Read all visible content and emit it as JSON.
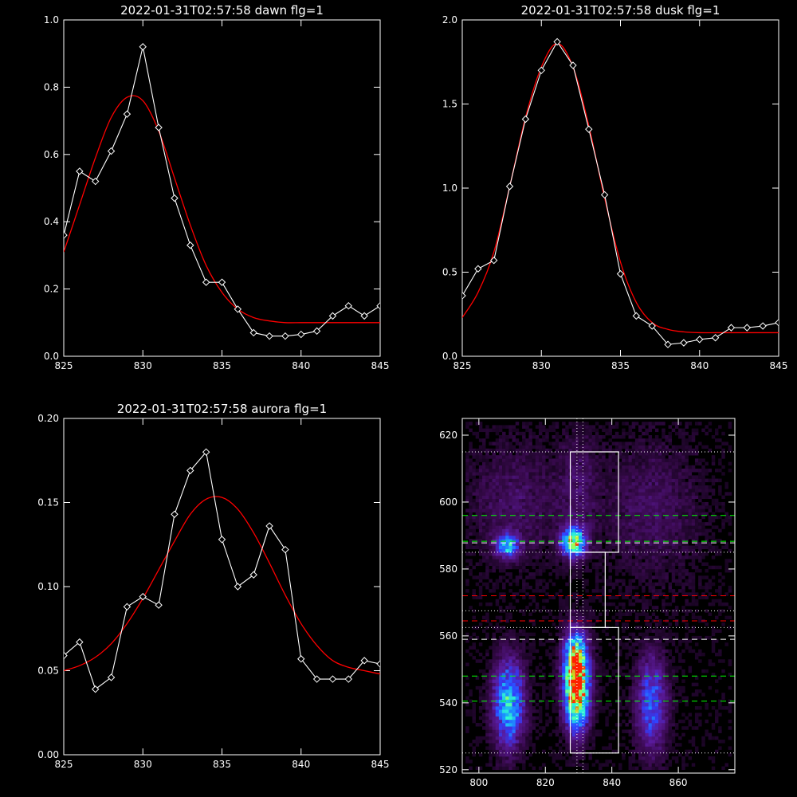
{
  "chart_data": [
    {
      "type": "line",
      "title": "2022-01-31T02:57:58 dawn flg=1",
      "xlim": [
        825,
        845
      ],
      "ylim": [
        0,
        1.0
      ],
      "xticks": [
        "825",
        "830",
        "835",
        "840",
        "845"
      ],
      "yticks": [
        "0.0",
        "0.2",
        "0.4",
        "0.6",
        "0.8",
        "1.0"
      ],
      "series": [
        {
          "role": "data",
          "color": "#ffffff",
          "markers": "diamond",
          "x": [
            825,
            826,
            827,
            828,
            829,
            830,
            831,
            832,
            833,
            834,
            835,
            836,
            837,
            838,
            839,
            840,
            841,
            842,
            843,
            844,
            845
          ],
          "y": [
            0.36,
            0.55,
            0.52,
            0.61,
            0.72,
            0.92,
            0.68,
            0.47,
            0.33,
            0.22,
            0.22,
            0.14,
            0.07,
            0.06,
            0.06,
            0.065,
            0.075,
            0.12,
            0.15,
            0.12,
            0.15
          ]
        },
        {
          "role": "fit",
          "color": "#ff0000",
          "x": [
            825,
            826,
            827,
            828,
            829,
            830,
            831,
            832,
            833,
            834,
            835,
            836,
            837,
            838,
            839,
            840,
            841,
            842,
            843,
            844,
            845
          ],
          "y": [
            0.31,
            0.45,
            0.59,
            0.71,
            0.77,
            0.76,
            0.67,
            0.53,
            0.39,
            0.27,
            0.19,
            0.14,
            0.115,
            0.105,
            0.1,
            0.1,
            0.1,
            0.1,
            0.1,
            0.1,
            0.1
          ]
        }
      ]
    },
    {
      "type": "line",
      "title": "2022-01-31T02:57:58 dusk flg=1",
      "xlim": [
        825,
        845
      ],
      "ylim": [
        0,
        2.0
      ],
      "xticks": [
        "825",
        "830",
        "835",
        "840",
        "845"
      ],
      "yticks": [
        "0.0",
        "0.5",
        "1.0",
        "1.5",
        "2.0"
      ],
      "series": [
        {
          "role": "data",
          "color": "#ffffff",
          "markers": "diamond",
          "x": [
            825,
            826,
            827,
            828,
            829,
            830,
            831,
            832,
            833,
            834,
            835,
            836,
            837,
            838,
            839,
            840,
            841,
            842,
            843,
            844,
            845
          ],
          "y": [
            0.36,
            0.52,
            0.57,
            1.01,
            1.41,
            1.7,
            1.87,
            1.73,
            1.35,
            0.96,
            0.49,
            0.24,
            0.18,
            0.07,
            0.08,
            0.1,
            0.11,
            0.17,
            0.17,
            0.18,
            0.2
          ]
        },
        {
          "role": "fit",
          "color": "#ff0000",
          "x": [
            825,
            826,
            827,
            828,
            829,
            830,
            831,
            832,
            833,
            834,
            835,
            836,
            837,
            838,
            839,
            840,
            841,
            842,
            843,
            844,
            845
          ],
          "y": [
            0.23,
            0.38,
            0.62,
            1.01,
            1.42,
            1.72,
            1.86,
            1.72,
            1.37,
            0.94,
            0.56,
            0.32,
            0.2,
            0.16,
            0.145,
            0.14,
            0.14,
            0.14,
            0.14,
            0.14,
            0.14
          ]
        }
      ]
    },
    {
      "type": "line",
      "title": "2022-01-31T02:57:58 aurora flg=1",
      "xlim": [
        825,
        845
      ],
      "ylim": [
        0,
        0.2
      ],
      "xticks": [
        "825",
        "830",
        "835",
        "840",
        "845"
      ],
      "yticks": [
        "0.00",
        "0.05",
        "0.10",
        "0.15",
        "0.20"
      ],
      "series": [
        {
          "role": "data",
          "color": "#ffffff",
          "markers": "diamond",
          "x": [
            825,
            826,
            827,
            828,
            829,
            830,
            831,
            832,
            833,
            834,
            835,
            836,
            837,
            838,
            839,
            840,
            841,
            842,
            843,
            844,
            845
          ],
          "y": [
            0.059,
            0.067,
            0.039,
            0.046,
            0.088,
            0.094,
            0.089,
            0.143,
            0.169,
            0.18,
            0.128,
            0.1,
            0.107,
            0.136,
            0.122,
            0.057,
            0.045,
            0.045,
            0.045,
            0.056,
            0.054
          ]
        },
        {
          "role": "fit",
          "color": "#ff0000",
          "x": [
            825,
            826,
            827,
            828,
            829,
            830,
            831,
            832,
            833,
            834,
            835,
            836,
            837,
            838,
            839,
            840,
            841,
            842,
            843,
            844,
            845
          ],
          "y": [
            0.05,
            0.053,
            0.058,
            0.066,
            0.078,
            0.093,
            0.11,
            0.127,
            0.143,
            0.152,
            0.153,
            0.146,
            0.132,
            0.114,
            0.095,
            0.078,
            0.065,
            0.056,
            0.052,
            0.05,
            0.048
          ]
        }
      ]
    },
    {
      "type": "heatmap",
      "title": "",
      "xlim": [
        795,
        877
      ],
      "ylim": [
        519,
        625
      ],
      "xticks": [
        "800",
        "820",
        "840",
        "860"
      ],
      "yticks": [
        "520",
        "540",
        "560",
        "580",
        "600",
        "620"
      ],
      "colormap": [
        "#000000",
        "#3a0a50",
        "#5a1a9a",
        "#3040ff",
        "#1aa0ff",
        "#30ffd0",
        "#c0ff30",
        "#ff2000"
      ],
      "hotspots": [
        {
          "x": 828.5,
          "y": 588,
          "sx": 2.5,
          "sy": 3,
          "amp": 0.78
        },
        {
          "x": 808.5,
          "y": 587,
          "sx": 2.5,
          "sy": 2.5,
          "amp": 0.55
        },
        {
          "x": 829.5,
          "y": 543,
          "sx": 2.6,
          "sy": 8,
          "amp": 0.95
        },
        {
          "x": 829,
          "y": 554,
          "sx": 2.5,
          "sy": 6,
          "amp": 0.6
        },
        {
          "x": 809,
          "y": 540,
          "sx": 3.2,
          "sy": 9,
          "amp": 0.62
        },
        {
          "x": 852,
          "y": 540,
          "sx": 3.2,
          "sy": 10,
          "amp": 0.42
        },
        {
          "x": 811,
          "y": 600,
          "sx": 10,
          "sy": 12,
          "amp": 0.13
        },
        {
          "x": 852,
          "y": 598,
          "sx": 10,
          "sy": 14,
          "amp": 0.13
        },
        {
          "x": 830,
          "y": 605,
          "sx": 4,
          "sy": 12,
          "amp": 0.12
        }
      ],
      "hlines": [
        {
          "y": 615,
          "color": "#ffffff",
          "dash": "dotted"
        },
        {
          "y": 596,
          "color": "#00ff00",
          "dash": "dashed"
        },
        {
          "y": 588.3,
          "color": "#00ff00",
          "dash": "dashed"
        },
        {
          "y": 587.8,
          "color": "#ffffff",
          "dash": "dashed"
        },
        {
          "y": 585,
          "color": "#ffffff",
          "dash": "dotted"
        },
        {
          "y": 572,
          "color": "#ff0000",
          "dash": "dashed"
        },
        {
          "y": 567.5,
          "color": "#ffffff",
          "dash": "dotted"
        },
        {
          "y": 564.5,
          "color": "#ff0000",
          "dash": "dashed"
        },
        {
          "y": 562.5,
          "color": "#ffffff",
          "dash": "dotted"
        },
        {
          "y": 559,
          "color": "#ffffff",
          "dash": "dashed"
        },
        {
          "y": 548,
          "color": "#00ff00",
          "dash": "dashed"
        },
        {
          "y": 540.5,
          "color": "#00ff00",
          "dash": "dashed"
        },
        {
          "y": 525,
          "color": "#ffffff",
          "dash": "dotted"
        }
      ],
      "vlines": [
        {
          "x": 829.5,
          "color": "#ffffff",
          "dash": "dotted"
        },
        {
          "x": 831.3,
          "color": "#ffffff",
          "dash": "dotted"
        }
      ],
      "boxes": [
        {
          "x": [
            827.5,
            842
          ],
          "y": [
            585,
            615
          ]
        },
        {
          "x": [
            827.5,
            838
          ],
          "y": [
            562.5,
            585
          ]
        },
        {
          "x": [
            827.5,
            842
          ],
          "y": [
            525,
            562.5
          ]
        }
      ]
    }
  ]
}
